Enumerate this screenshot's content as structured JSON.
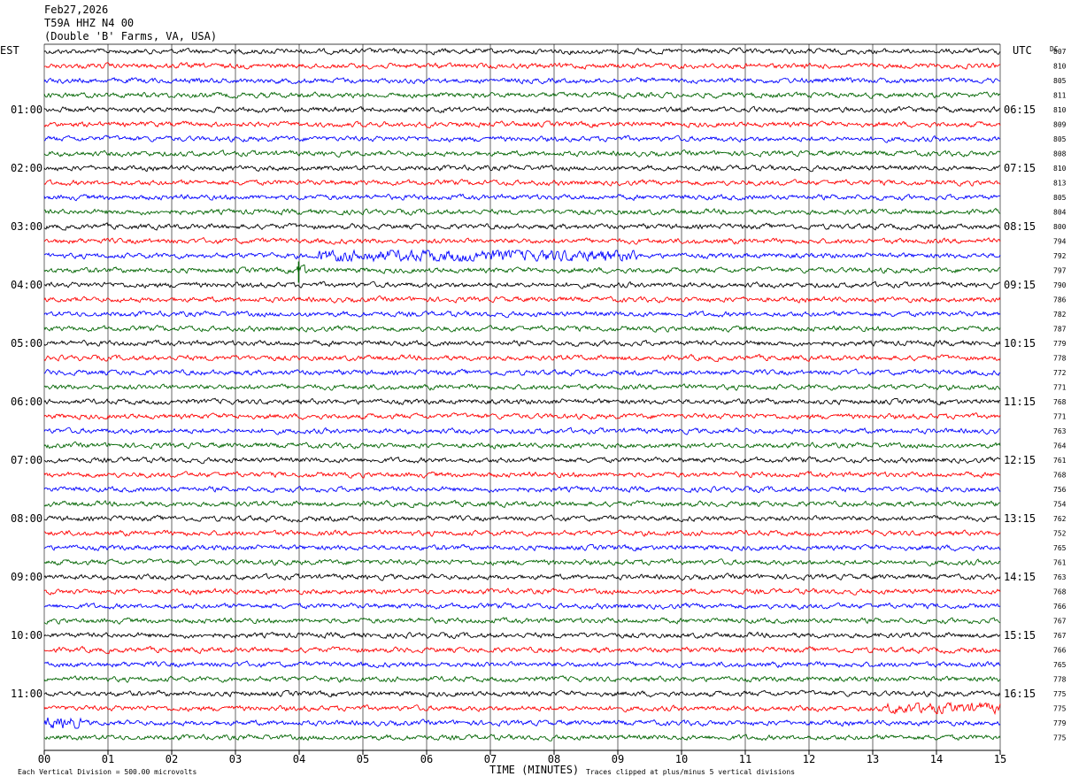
{
  "header": {
    "date": "Feb27,2026",
    "station": "T59A HHZ N4 00",
    "location": "(Double 'B' Farms, VA, USA)"
  },
  "labels": {
    "left_tz": "EST",
    "right_tz": "UTC",
    "dc": "DC",
    "xlabel": "TIME (MINUTES)",
    "vertical_division": "Each Vertical Division =  500.00 microvolts",
    "clip_note": "Traces clipped at plus/minus 5 vertical divisions"
  },
  "colors": {
    "trace_cycle": [
      "#000000",
      "#ff0000",
      "#0000ff",
      "#006400"
    ],
    "grid": "#000000"
  },
  "chart_data": {
    "type": "line",
    "title": "T59A HHZ N4 00",
    "xlabel": "TIME (MINUTES)",
    "xlim": [
      0,
      15
    ],
    "x_ticks": [
      "00",
      "01",
      "02",
      "03",
      "04",
      "05",
      "06",
      "07",
      "08",
      "09",
      "10",
      "11",
      "12",
      "13",
      "14",
      "15"
    ],
    "trace_count": 48,
    "minutes_per_trace": 15,
    "left_hour_labels": [
      "01:00",
      "02:00",
      "03:00",
      "04:00",
      "05:00",
      "06:00",
      "07:00",
      "08:00",
      "09:00",
      "10:00",
      "11:00"
    ],
    "right_hour_labels": [
      "06:15",
      "07:15",
      "08:15",
      "09:15",
      "10:15",
      "11:15",
      "12:15",
      "13:15",
      "14:15",
      "15:15",
      "16:15"
    ],
    "dc_offsets": [
      807,
      810,
      805,
      811,
      810,
      809,
      805,
      808,
      810,
      813,
      805,
      804,
      800,
      794,
      792,
      797,
      790,
      786,
      782,
      787,
      779,
      778,
      772,
      771,
      768,
      771,
      763,
      764,
      761,
      768,
      756,
      754,
      762,
      752,
      765,
      761,
      763,
      768,
      766,
      767,
      767,
      766,
      765,
      778,
      775,
      775,
      779,
      775
    ],
    "events": [
      {
        "trace": 14,
        "from_min": 4.3,
        "to_min": 9.3,
        "amplitude": 1.6,
        "note": "signal burst"
      },
      {
        "trace": 15,
        "from_min": 3.95,
        "to_min": 4.1,
        "amplitude": 2.2,
        "note": "spike"
      },
      {
        "trace": 45,
        "from_min": 13.2,
        "to_min": 15.0,
        "amplitude": 1.4,
        "note": "noise"
      },
      {
        "trace": 46,
        "from_min": 0.0,
        "to_min": 0.6,
        "amplitude": 1.6,
        "note": "noise"
      }
    ]
  }
}
